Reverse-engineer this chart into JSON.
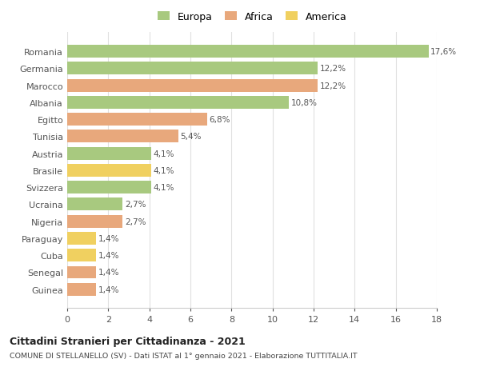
{
  "categories": [
    "Guinea",
    "Senegal",
    "Cuba",
    "Paraguay",
    "Nigeria",
    "Ucraina",
    "Svizzera",
    "Brasile",
    "Austria",
    "Tunisia",
    "Egitto",
    "Albania",
    "Marocco",
    "Germania",
    "Romania"
  ],
  "values": [
    1.4,
    1.4,
    1.4,
    1.4,
    2.7,
    2.7,
    4.1,
    4.1,
    4.1,
    5.4,
    6.8,
    10.8,
    12.2,
    12.2,
    17.6
  ],
  "continents": [
    "Africa",
    "Africa",
    "America",
    "America",
    "Africa",
    "Europa",
    "Europa",
    "America",
    "Europa",
    "Africa",
    "Africa",
    "Europa",
    "Africa",
    "Europa",
    "Europa"
  ],
  "colors": {
    "Europa": "#a8c97f",
    "Africa": "#e8a87c",
    "America": "#f0d060"
  },
  "labels": [
    "1,4%",
    "1,4%",
    "1,4%",
    "1,4%",
    "2,7%",
    "2,7%",
    "4,1%",
    "4,1%",
    "4,1%",
    "5,4%",
    "6,8%",
    "10,8%",
    "12,2%",
    "12,2%",
    "17,6%"
  ],
  "xlim": [
    0,
    18
  ],
  "xticks": [
    0,
    2,
    4,
    6,
    8,
    10,
    12,
    14,
    16,
    18
  ],
  "title": "Cittadini Stranieri per Cittadinanza - 2021",
  "subtitle": "COMUNE DI STELLANELLO (SV) - Dati ISTAT al 1° gennaio 2021 - Elaborazione TUTTITALIA.IT",
  "legend_labels": [
    "Europa",
    "Africa",
    "America"
  ],
  "background_color": "#ffffff",
  "grid_color": "#e0e0e0"
}
